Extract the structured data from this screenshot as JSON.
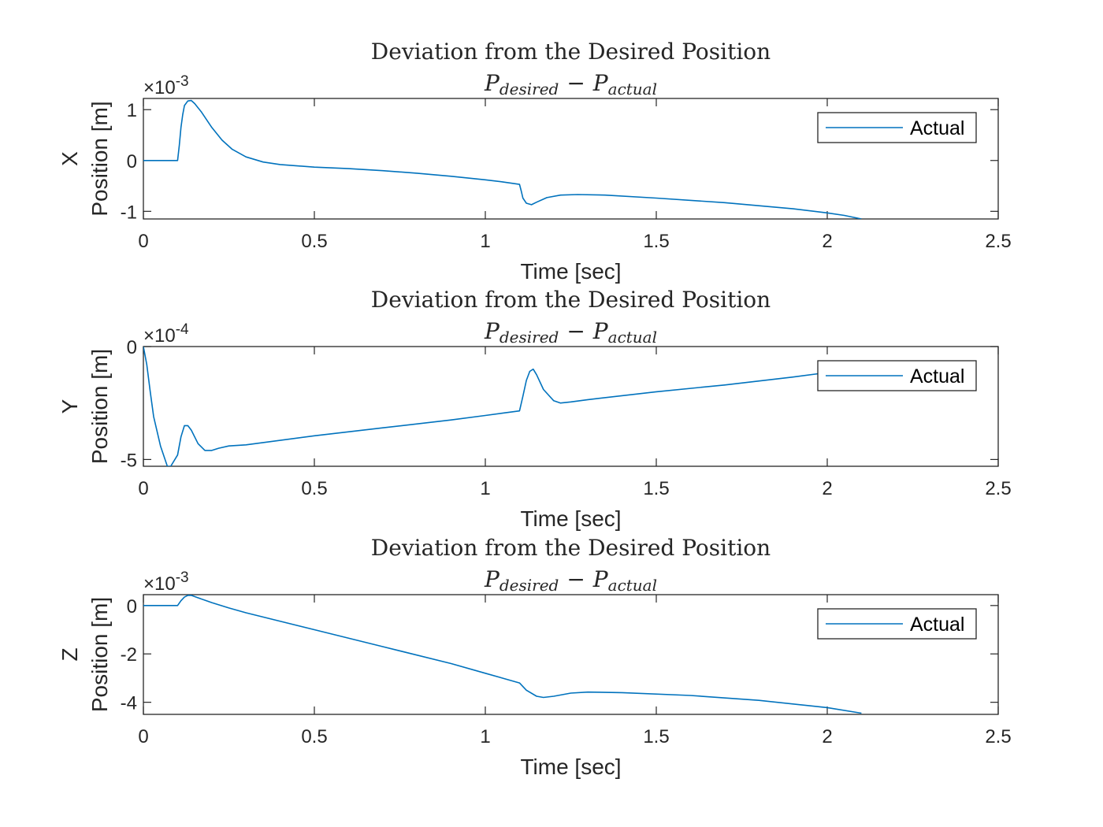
{
  "chart_data": [
    {
      "type": "line",
      "title": "Deviation from the Desired Position",
      "subtitle": {
        "main_left": "P",
        "sub_left": "desired",
        "operator": "−",
        "main_right": "P",
        "sub_right": "actual"
      },
      "xlabel": "Time [sec]",
      "ylabel_line1": "X",
      "ylabel_line2": "Position [m]",
      "exponent_label": {
        "base": "×10",
        "power": "-3"
      },
      "xlim": [
        0,
        2.5
      ],
      "ylim": [
        -1.15,
        1.22
      ],
      "xticks": [
        0,
        0.5,
        1,
        1.5,
        2,
        2.5
      ],
      "xtick_labels": [
        "0",
        "0.5",
        "1",
        "1.5",
        "2",
        "2.5"
      ],
      "yticks": [
        -1,
        0,
        1
      ],
      "ytick_labels": [
        "-1",
        "0",
        "1"
      ],
      "legend": "top-right",
      "series": [
        {
          "name": "Actual",
          "color": "#0072bd",
          "x": [
            0,
            0.1,
            0.105,
            0.11,
            0.115,
            0.12,
            0.13,
            0.14,
            0.15,
            0.17,
            0.2,
            0.23,
            0.26,
            0.3,
            0.35,
            0.4,
            0.5,
            0.6,
            0.7,
            0.8,
            0.9,
            1.0,
            1.05,
            1.1,
            1.105,
            1.11,
            1.12,
            1.135,
            1.15,
            1.18,
            1.22,
            1.27,
            1.35,
            1.5,
            1.7,
            1.9,
            2.0,
            2.05,
            2.1
          ],
          "y": [
            0,
            0,
            0.3,
            0.65,
            0.9,
            1.08,
            1.17,
            1.18,
            1.12,
            0.95,
            0.65,
            0.4,
            0.22,
            0.07,
            -0.03,
            -0.08,
            -0.13,
            -0.16,
            -0.2,
            -0.25,
            -0.31,
            -0.38,
            -0.42,
            -0.47,
            -0.6,
            -0.74,
            -0.84,
            -0.87,
            -0.82,
            -0.73,
            -0.68,
            -0.67,
            -0.68,
            -0.74,
            -0.83,
            -0.95,
            -1.03,
            -1.08,
            -1.15
          ]
        }
      ]
    },
    {
      "type": "line",
      "title": "Deviation from the Desired Position",
      "subtitle": {
        "main_left": "P",
        "sub_left": "desired",
        "operator": "−",
        "main_right": "P",
        "sub_right": "actual"
      },
      "xlabel": "Time [sec]",
      "ylabel_line1": "Y",
      "ylabel_line2": "Position [m]",
      "exponent_label": {
        "base": "×10",
        "power": "-4"
      },
      "xlim": [
        0,
        2.5
      ],
      "ylim": [
        -5.3,
        0
      ],
      "xticks": [
        0,
        0.5,
        1,
        1.5,
        2,
        2.5
      ],
      "xtick_labels": [
        "0",
        "0.5",
        "1",
        "1.5",
        "2",
        "2.5"
      ],
      "yticks": [
        -5,
        0
      ],
      "ytick_labels": [
        "-5",
        "0"
      ],
      "legend": "top-right",
      "series": [
        {
          "name": "Actual",
          "color": "#0072bd",
          "x": [
            0,
            0.01,
            0.02,
            0.03,
            0.05,
            0.07,
            0.08,
            0.1,
            0.11,
            0.12,
            0.13,
            0.14,
            0.16,
            0.18,
            0.2,
            0.22,
            0.25,
            0.3,
            0.5,
            0.7,
            0.9,
            1.0,
            1.05,
            1.1,
            1.11,
            1.12,
            1.13,
            1.14,
            1.15,
            1.17,
            1.2,
            1.22,
            1.25,
            1.3,
            1.5,
            1.7,
            1.9,
            2.0,
            2.05
          ],
          "y": [
            0,
            -0.8,
            -2.0,
            -3.1,
            -4.4,
            -5.3,
            -5.3,
            -4.8,
            -4.0,
            -3.5,
            -3.5,
            -3.7,
            -4.3,
            -4.6,
            -4.6,
            -4.5,
            -4.4,
            -4.35,
            -3.95,
            -3.6,
            -3.25,
            -3.05,
            -2.95,
            -2.85,
            -2.2,
            -1.5,
            -1.1,
            -1.0,
            -1.25,
            -1.9,
            -2.4,
            -2.5,
            -2.45,
            -2.35,
            -2.0,
            -1.7,
            -1.35,
            -1.15,
            -1.05
          ]
        }
      ]
    },
    {
      "type": "line",
      "title": "Deviation from the Desired Position",
      "subtitle": {
        "main_left": "P",
        "sub_left": "desired",
        "operator": "−",
        "main_right": "P",
        "sub_right": "actual"
      },
      "xlabel": "Time [sec]",
      "ylabel_line1": "Z",
      "ylabel_line2": "Position [m]",
      "exponent_label": {
        "base": "×10",
        "power": "-3"
      },
      "xlim": [
        0,
        2.5
      ],
      "ylim": [
        -4.5,
        0.45
      ],
      "xticks": [
        0,
        0.5,
        1,
        1.5,
        2,
        2.5
      ],
      "xtick_labels": [
        "0",
        "0.5",
        "1",
        "1.5",
        "2",
        "2.5"
      ],
      "yticks": [
        -4,
        -2,
        0
      ],
      "ytick_labels": [
        "-4",
        "-2",
        "0"
      ],
      "legend": "top-right",
      "series": [
        {
          "name": "Actual",
          "color": "#0072bd",
          "x": [
            0,
            0.1,
            0.11,
            0.12,
            0.13,
            0.14,
            0.16,
            0.2,
            0.25,
            0.3,
            0.5,
            0.7,
            0.9,
            1.0,
            1.1,
            1.12,
            1.15,
            1.17,
            1.2,
            1.25,
            1.3,
            1.4,
            1.6,
            1.8,
            2.0,
            2.1
          ],
          "y": [
            0,
            0,
            0.2,
            0.35,
            0.42,
            0.42,
            0.32,
            0.12,
            -0.1,
            -0.3,
            -1.0,
            -1.7,
            -2.4,
            -2.8,
            -3.2,
            -3.5,
            -3.75,
            -3.8,
            -3.75,
            -3.62,
            -3.58,
            -3.6,
            -3.72,
            -3.92,
            -4.22,
            -4.45
          ]
        }
      ]
    }
  ]
}
